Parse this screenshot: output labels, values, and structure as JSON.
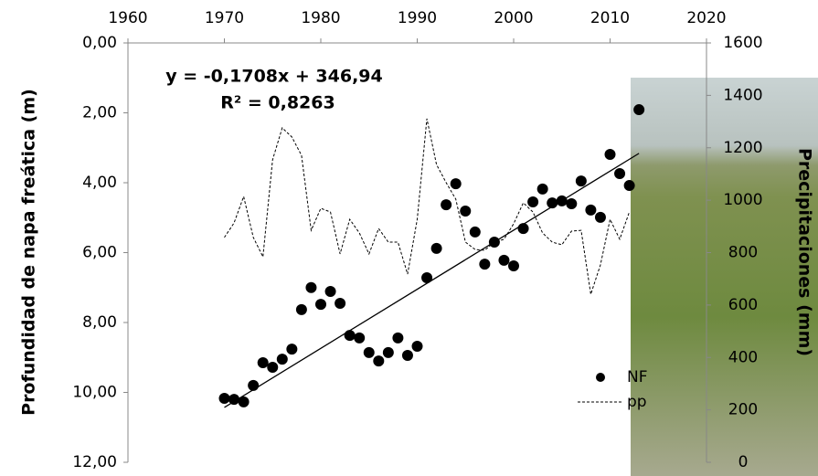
{
  "chart_data": {
    "type": "scatter",
    "x_label": null,
    "y_label": "Profundidad de napa freática (m)",
    "y2_label": "Precipitaciones (mm)",
    "annotations": [
      "y = -0,1708x + 346,94",
      "R² = 0,8263"
    ],
    "xlim": [
      1960,
      2020
    ],
    "xticks": [
      1960,
      1970,
      1980,
      1990,
      2000,
      2010,
      2020
    ],
    "ylim": [
      0,
      12
    ],
    "y_reversed": true,
    "yticks": [
      {
        "value": 0,
        "label": "0,00"
      },
      {
        "value": 2,
        "label": "2,00"
      },
      {
        "value": 4,
        "label": "4,00"
      },
      {
        "value": 6,
        "label": "6,00"
      },
      {
        "value": 8,
        "label": "8,00"
      },
      {
        "value": 10,
        "label": "10,00"
      },
      {
        "value": 12,
        "label": "12,00"
      }
    ],
    "y2lim": [
      0,
      1600
    ],
    "y2ticks": [
      0,
      200,
      400,
      600,
      800,
      1000,
      1200,
      1400,
      1600
    ],
    "series": [
      {
        "name": "NF",
        "kind": "scatter",
        "color": "#000000",
        "x": [
          1970,
          1971,
          1972,
          1973,
          1974,
          1975,
          1976,
          1977,
          1978,
          1979,
          1980,
          1981,
          1982,
          1983,
          1984,
          1985,
          1986,
          1987,
          1988,
          1989,
          1990,
          1991,
          1992,
          1993,
          1994,
          1995,
          1996,
          1997,
          1998,
          1999,
          2000,
          2001,
          2002,
          2003,
          2004,
          2005,
          2006,
          2007,
          2008,
          2009,
          2010,
          2011,
          2012,
          2013
        ],
        "values": [
          10.17,
          10.2,
          10.27,
          9.8,
          9.15,
          9.28,
          9.05,
          8.76,
          7.63,
          7.0,
          7.48,
          7.11,
          7.45,
          8.37,
          8.44,
          8.86,
          9.1,
          8.86,
          8.44,
          8.94,
          8.68,
          6.72,
          5.88,
          4.63,
          4.03,
          4.81,
          5.41,
          6.33,
          5.7,
          6.22,
          6.38,
          5.31,
          4.55,
          4.18,
          4.58,
          4.52,
          4.6,
          3.95,
          4.78,
          4.99,
          3.19,
          3.74,
          4.08,
          1.91
        ]
      },
      {
        "name": "pp",
        "kind": "line",
        "axis": "y2",
        "color": "#000000",
        "x": [
          1970,
          1971,
          1972,
          1973,
          1974,
          1975,
          1976,
          1977,
          1978,
          1979,
          1980,
          1981,
          1982,
          1983,
          1984,
          1985,
          1986,
          1987,
          1988,
          1989,
          1990,
          1991,
          1992,
          1993,
          1994,
          1995,
          1996,
          1997,
          1998,
          1999,
          2000,
          2001,
          2002,
          2003,
          2004,
          2005,
          2006,
          2007,
          2008,
          2009,
          2010,
          2011,
          2012
        ],
        "values": [
          858,
          913,
          1014,
          858,
          784,
          1154,
          1276,
          1241,
          1171,
          885,
          969,
          955,
          795,
          927,
          875,
          795,
          892,
          840,
          840,
          718,
          927,
          1311,
          1136,
          1067,
          1004,
          840,
          812,
          809,
          840,
          851,
          910,
          990,
          955,
          875,
          840,
          830,
          882,
          885,
          641,
          753,
          927,
          851,
          955
        ]
      }
    ],
    "trendline": {
      "x": [
        1970,
        2013
      ],
      "values": [
        10.43,
        3.16
      ],
      "color": "#000000"
    }
  }
}
